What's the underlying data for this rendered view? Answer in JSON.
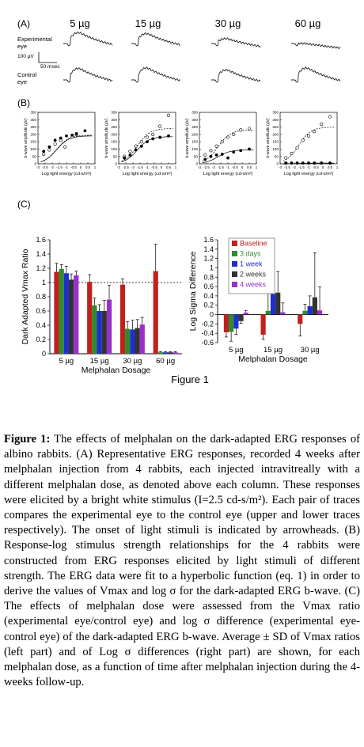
{
  "panel_a": {
    "label": "(A)",
    "doses": [
      "5 µg",
      "15 µg",
      "30 µg",
      "60 µg"
    ],
    "row_top_label": [
      "Experimental",
      "eye"
    ],
    "row_bottom_label": [
      "Control",
      "eye"
    ],
    "scale_amp": "100 µV",
    "scale_time": "50 msec"
  },
  "panel_b": {
    "label": "(B)",
    "ylabel": "b-wave amplitude (µV)",
    "xlabel": "Log light energy (cd-s/m²)",
    "yticks": [
      "0",
      "50",
      "100",
      "150",
      "200",
      "250",
      "300",
      "350"
    ],
    "xticks": [
      "-3",
      "-2.5",
      "-2",
      "-1.5",
      "-1",
      "-0.5",
      "0",
      "0.5",
      "1"
    ],
    "plots": [
      {
        "open": [
          [
            -2.6,
            65
          ],
          [
            -2.2,
            95
          ],
          [
            -1.8,
            135
          ],
          [
            -1.4,
            160
          ],
          [
            -1.1,
            115
          ],
          [
            -0.6,
            185
          ],
          [
            -0.3,
            200
          ]
        ],
        "filled": [
          [
            -2.6,
            85
          ],
          [
            -2.2,
            115
          ],
          [
            -1.8,
            160
          ],
          [
            -1.4,
            175
          ],
          [
            -1.0,
            190
          ],
          [
            -0.6,
            195
          ],
          [
            -0.3,
            205
          ],
          [
            0.3,
            225
          ]
        ],
        "dashed_max": 195,
        "solid_max": 190
      },
      {
        "open": [
          [
            -2.6,
            50
          ],
          [
            -2.2,
            85
          ],
          [
            -1.8,
            120
          ],
          [
            -1.4,
            150
          ],
          [
            -1.0,
            180
          ],
          [
            -0.6,
            200
          ],
          [
            -0.1,
            255
          ],
          [
            0.5,
            330
          ]
        ],
        "filled": [
          [
            -2.6,
            40
          ],
          [
            -2.2,
            60
          ],
          [
            -1.8,
            95
          ],
          [
            -1.4,
            120
          ],
          [
            -1.0,
            150
          ],
          [
            -0.6,
            170
          ],
          [
            -0.1,
            180
          ],
          [
            0.5,
            190
          ]
        ],
        "dashed_max": 240,
        "solid_max": 185
      },
      {
        "open": [
          [
            -2.6,
            60
          ],
          [
            -2.2,
            90
          ],
          [
            -1.8,
            120
          ],
          [
            -1.4,
            150
          ],
          [
            -1.0,
            180
          ],
          [
            -0.6,
            200
          ],
          [
            -0.1,
            230
          ],
          [
            0.5,
            240
          ]
        ],
        "filled": [
          [
            -2.6,
            30
          ],
          [
            -2.2,
            50
          ],
          [
            -1.8,
            60
          ],
          [
            -1.4,
            65
          ],
          [
            -1.0,
            40
          ],
          [
            -0.6,
            80
          ],
          [
            -0.1,
            90
          ],
          [
            0.5,
            100
          ]
        ],
        "dashed_max": 230,
        "solid_max": 95
      },
      {
        "open": [
          [
            -2.6,
            40
          ],
          [
            -2.2,
            70
          ],
          [
            -1.8,
            110
          ],
          [
            -1.4,
            160
          ],
          [
            -1.0,
            190
          ],
          [
            -0.6,
            220
          ],
          [
            -0.1,
            270
          ],
          [
            0.5,
            320
          ]
        ],
        "filled": [
          [
            -2.6,
            5
          ],
          [
            -2.2,
            5
          ],
          [
            -1.8,
            5
          ],
          [
            -1.4,
            5
          ],
          [
            -1.0,
            5
          ],
          [
            -0.6,
            5
          ],
          [
            -0.1,
            5
          ],
          [
            0.5,
            5
          ]
        ],
        "dashed_max": 250,
        "solid_max": 5
      }
    ]
  },
  "panel_c": {
    "label": "(C)",
    "series_colors": [
      "#c0211f",
      "#2e8b2e",
      "#1f2ecc",
      "#333333",
      "#9b30c9"
    ],
    "legend": [
      "Baseline",
      "3 days",
      "1 week",
      "2 weeks",
      "4 weeks"
    ],
    "xlabel": "Melphalan Dosage"
  },
  "chart_data": [
    {
      "type": "bar",
      "ylabel": "Dark Adapted Vmax Ratio",
      "xlabel": "Melphalan Dosage",
      "categories": [
        "5 µg",
        "15 µg",
        "30 µg",
        "60 µg"
      ],
      "ylim": [
        0,
        1.6
      ],
      "yticks": [
        "0",
        "0.2",
        "0.4",
        "0.6",
        "0.8",
        "1",
        "1.2",
        "1.4",
        "1.6"
      ],
      "reference_line": 1,
      "series": [
        {
          "name": "Baseline",
          "values": [
            1.15,
            1.01,
            0.97,
            1.16
          ],
          "errors": [
            0.12,
            0.1,
            0.08,
            0.38
          ]
        },
        {
          "name": "3 days",
          "values": [
            1.19,
            0.68,
            0.35,
            0.02
          ],
          "errors": [
            0.06,
            0.1,
            0.1,
            0.01
          ]
        },
        {
          "name": "1 week",
          "values": [
            1.13,
            0.6,
            0.34,
            0.02
          ],
          "errors": [
            0.1,
            0.09,
            0.13,
            0.01
          ]
        },
        {
          "name": "2 weeks",
          "values": [
            1.04,
            0.6,
            0.36,
            0.02
          ],
          "errors": [
            0.08,
            0.15,
            0.12,
            0.01
          ]
        },
        {
          "name": "4 weeks",
          "values": [
            1.1,
            0.76,
            0.41,
            0.02
          ],
          "errors": [
            0.06,
            0.2,
            0.1,
            0.01
          ]
        }
      ]
    },
    {
      "type": "bar",
      "ylabel": "Log Sigma Difference",
      "xlabel": "Melphalan Dosage",
      "categories": [
        "5 µg",
        "15 µg",
        "30 µg"
      ],
      "ylim": [
        -0.6,
        1.6
      ],
      "yticks": [
        "-0.6",
        "-0.4",
        "-0.2",
        "0",
        "0.2",
        "0.4",
        "0.6",
        "0.8",
        "1",
        "1.2",
        "1.4",
        "1.6"
      ],
      "legend_position": "top-left",
      "series": [
        {
          "name": "Baseline",
          "values": [
            -0.38,
            -0.43,
            -0.2
          ],
          "errors": [
            0.1,
            0.1,
            0.26
          ]
        },
        {
          "name": "3 days",
          "values": [
            -0.37,
            0.08,
            0.08
          ],
          "errors": [
            0.2,
            0.43,
            0.14
          ]
        },
        {
          "name": "1 week",
          "values": [
            -0.3,
            0.44,
            0.18
          ],
          "errors": [
            0.12,
            0.5,
            0.22
          ]
        },
        {
          "name": "2 weeks",
          "values": [
            -0.14,
            0.47,
            0.37
          ],
          "errors": [
            0.05,
            0.45,
            0.95
          ]
        },
        {
          "name": "4 weeks",
          "values": [
            0.04,
            0.05,
            0.09
          ],
          "errors": [
            0.05,
            0.2,
            0.5
          ]
        }
      ]
    }
  ],
  "figure_title": "Figure 1",
  "caption": {
    "lead": "Figure 1:",
    "body": " The effects of melphalan on the dark-adapted ERG responses of albino rabbits. (A) Representative ERG responses, recorded 4 weeks after melphalan injection from 4 rabbits, each injected intravitreally with a different melphalan dose, as denoted above each column. These responses were elicited by a bright white stimulus (I=2.5 cd-s/m²). Each pair of traces compares the experimental eye to the control eye (upper and lower traces respectively). The onset of light stimuli is indicated by arrowheads. (B) Response-log stimulus strength relationships for the 4 rabbits were constructed from ERG responses elicited by light stimuli of different strength. The ERG data were fit to a hyperbolic function (eq. 1) in order to derive the values of Vmax and log σ for the dark-adapted ERG b-wave. (C) The effects of melphalan dose were assessed from the Vmax ratio (experimental eye/control eye) and log σ difference (experimental eye-control eye) of the dark-adapted ERG b-wave. Average ± SD of Vmax ratios (left part) and of Log σ differences (right part) are shown, for each melphalan dose, as a function of time after melphalan injection during the 4-weeks follow-up."
  }
}
